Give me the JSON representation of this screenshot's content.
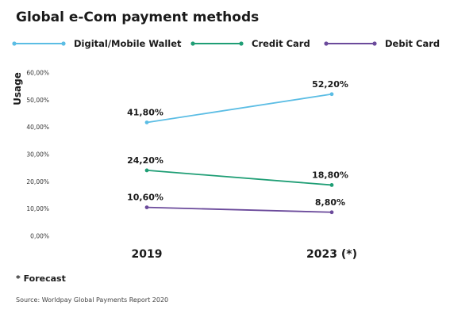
{
  "chart_data": {
    "type": "line",
    "title": "Global e-Com payment methods",
    "ylabel": "Usage",
    "xlabel": "",
    "categories": [
      "2019",
      "2023 (*)"
    ],
    "ylim": [
      0,
      60
    ],
    "yticks": [
      "0,00%",
      "10,00%",
      "20,00%",
      "30,00%",
      "40,00%",
      "50,00%",
      "60,00%"
    ],
    "yticks_values": [
      0,
      10,
      20,
      30,
      40,
      50,
      60
    ],
    "grid": false,
    "legend_position": "top",
    "series": [
      {
        "name": "Digital/Mobile Wallet",
        "color": "#5bbde4",
        "values": [
          41.8,
          52.2
        ],
        "labels": [
          "41,80%",
          "52,20%"
        ]
      },
      {
        "name": "Credit Card",
        "color": "#1f9e75",
        "values": [
          24.2,
          18.8
        ],
        "labels": [
          "24,20%",
          "18,80%"
        ]
      },
      {
        "name": "Debit Card",
        "color": "#6b4a9b",
        "values": [
          10.6,
          8.8
        ],
        "labels": [
          "10,60%",
          "8,80%"
        ]
      }
    ]
  },
  "footnote": "* Forecast",
  "source": "Source: Worldpay Global Payments Report 2020"
}
